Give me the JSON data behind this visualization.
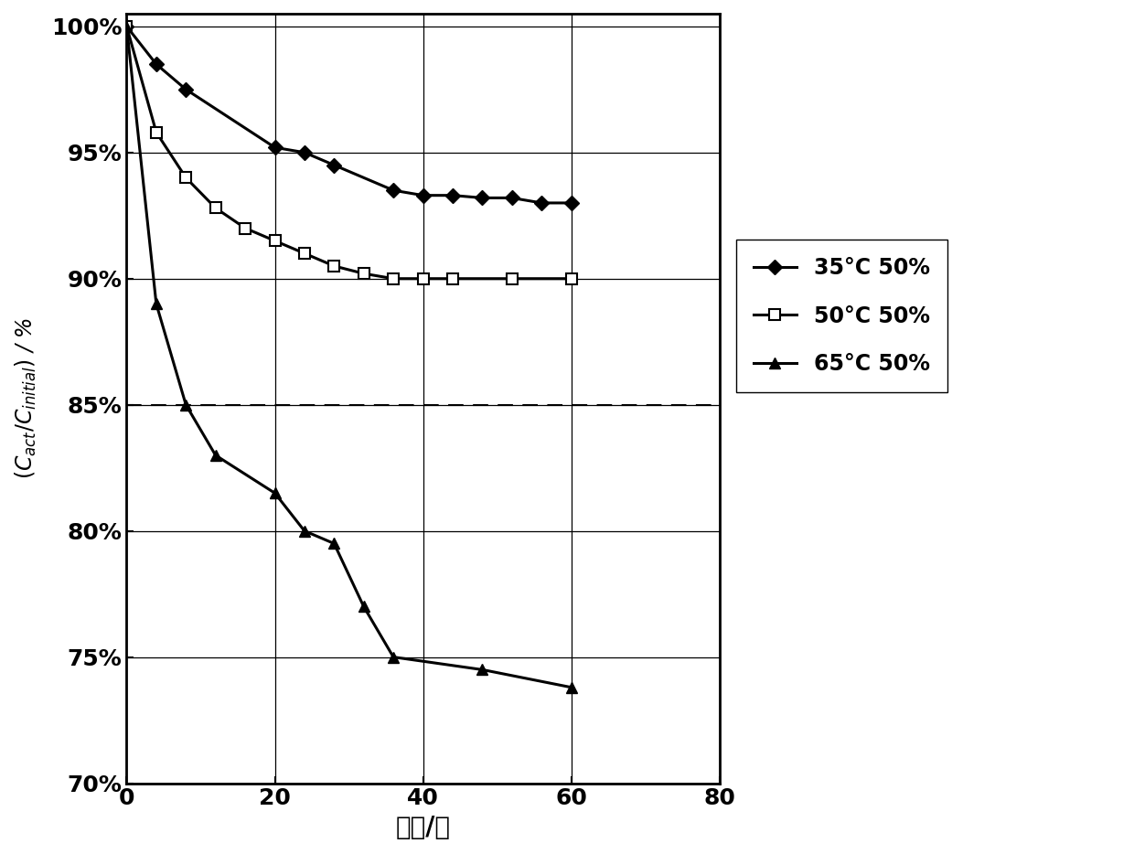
{
  "series_35": {
    "x": [
      0,
      4,
      8,
      20,
      24,
      28,
      36,
      40,
      44,
      48,
      52,
      56,
      60
    ],
    "y": [
      100,
      98.5,
      97.5,
      95.2,
      95.0,
      94.5,
      93.5,
      93.3,
      93.3,
      93.2,
      93.2,
      93.0,
      93.0
    ],
    "label": "35°C 50%",
    "marker": "D",
    "markersize": 8,
    "linewidth": 2.2
  },
  "series_50": {
    "x": [
      0,
      4,
      8,
      12,
      16,
      20,
      24,
      28,
      32,
      36,
      40,
      44,
      52,
      60
    ],
    "y": [
      100,
      95.8,
      94.0,
      92.8,
      92.0,
      91.5,
      91.0,
      90.5,
      90.2,
      90.0,
      90.0,
      90.0,
      90.0,
      90.0
    ],
    "label": "50°C 50%",
    "marker": "s",
    "markersize": 8,
    "linewidth": 2.2,
    "markerfacecolor": "white"
  },
  "series_65": {
    "x": [
      0,
      4,
      8,
      12,
      20,
      24,
      28,
      32,
      36,
      48,
      60
    ],
    "y": [
      100,
      89.0,
      85.0,
      83.0,
      81.5,
      80.0,
      79.5,
      77.0,
      75.0,
      74.5,
      73.8
    ],
    "label": "65°C 50%",
    "marker": "^",
    "markersize": 8,
    "linewidth": 2.2
  },
  "xlabel": "时间/周",
  "xlim": [
    0,
    80
  ],
  "ylim": [
    70,
    100.5
  ],
  "xticks": [
    0,
    20,
    40,
    60,
    80
  ],
  "yticks": [
    70,
    75,
    80,
    85,
    90,
    95,
    100
  ],
  "ytick_labels": [
    "70%",
    "75%",
    "80%",
    "85%",
    "90%",
    "95%",
    "100%"
  ],
  "dashed_line_y": 85
}
